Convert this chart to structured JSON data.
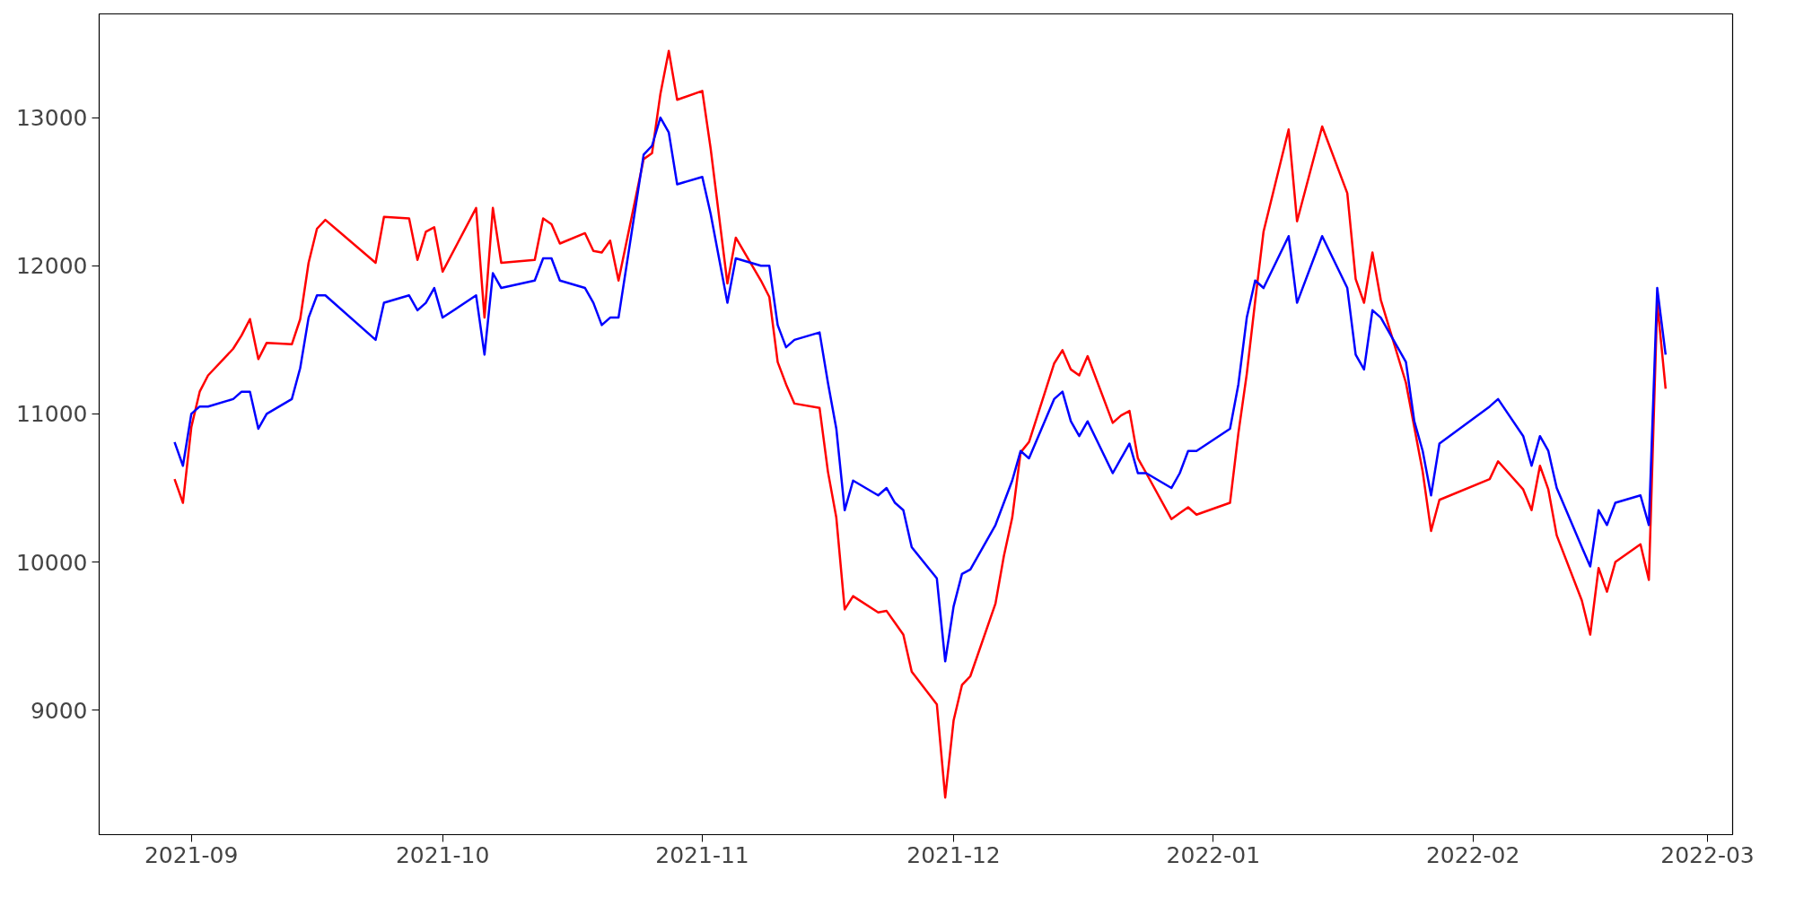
{
  "chart_data": {
    "type": "line",
    "x": [
      "2021-08-30",
      "2021-08-31",
      "2021-09-01",
      "2021-09-02",
      "2021-09-03",
      "2021-09-06",
      "2021-09-07",
      "2021-09-08",
      "2021-09-09",
      "2021-09-10",
      "2021-09-13",
      "2021-09-14",
      "2021-09-15",
      "2021-09-16",
      "2021-09-17",
      "2021-09-23",
      "2021-09-24",
      "2021-09-27",
      "2021-09-28",
      "2021-09-29",
      "2021-09-30",
      "2021-10-01",
      "2021-10-05",
      "2021-10-06",
      "2021-10-07",
      "2021-10-08",
      "2021-10-12",
      "2021-10-13",
      "2021-10-14",
      "2021-10-15",
      "2021-10-18",
      "2021-10-19",
      "2021-10-20",
      "2021-10-21",
      "2021-10-22",
      "2021-10-25",
      "2021-10-26",
      "2021-10-27",
      "2021-10-28",
      "2021-10-29",
      "2021-11-01",
      "2021-11-02",
      "2021-11-04",
      "2021-11-05",
      "2021-11-08",
      "2021-11-09",
      "2021-11-10",
      "2021-11-11",
      "2021-11-12",
      "2021-11-15",
      "2021-11-16",
      "2021-11-17",
      "2021-11-18",
      "2021-11-19",
      "2021-11-22",
      "2021-11-23",
      "2021-11-24",
      "2021-11-25",
      "2021-11-26",
      "2021-11-29",
      "2021-11-30",
      "2021-12-01",
      "2021-12-02",
      "2021-12-03",
      "2021-12-06",
      "2021-12-07",
      "2021-12-08",
      "2021-12-09",
      "2021-12-10",
      "2021-12-13",
      "2021-12-14",
      "2021-12-15",
      "2021-12-16",
      "2021-12-17",
      "2021-12-20",
      "2021-12-21",
      "2021-12-22",
      "2021-12-23",
      "2021-12-24",
      "2021-12-27",
      "2021-12-28",
      "2021-12-29",
      "2021-12-30",
      "2022-01-03",
      "2022-01-04",
      "2022-01-05",
      "2022-01-06",
      "2022-01-07",
      "2022-01-10",
      "2022-01-11",
      "2022-01-14",
      "2022-01-17",
      "2022-01-18",
      "2022-01-19",
      "2022-01-20",
      "2022-01-21",
      "2022-01-24",
      "2022-01-25",
      "2022-01-26",
      "2022-01-27",
      "2022-01-28",
      "2022-02-03",
      "2022-02-04",
      "2022-02-07",
      "2022-02-08",
      "2022-02-09",
      "2022-02-10",
      "2022-02-11",
      "2022-02-14",
      "2022-02-15",
      "2022-02-16",
      "2022-02-17",
      "2022-02-18",
      "2022-02-21",
      "2022-02-22",
      "2022-02-23",
      "2022-02-24"
    ],
    "series": [
      {
        "color": "#ff0000",
        "values": [
          10560,
          10400,
          10910,
          11150,
          11260,
          11440,
          11530,
          11640,
          11370,
          11480,
          11470,
          11640,
          12020,
          12250,
          12310,
          12020,
          12330,
          12320,
          12040,
          12230,
          12260,
          11960,
          12390,
          11650,
          12390,
          12020,
          12040,
          12320,
          12280,
          12150,
          12220,
          12100,
          12090,
          12170,
          11900,
          12720,
          12760,
          13160,
          13450,
          13120,
          13180,
          12790,
          11880,
          12190,
          11900,
          11790,
          11350,
          11200,
          11070,
          11040,
          10610,
          10300,
          9680,
          9770,
          9660,
          9670,
          9590,
          9510,
          9260,
          9040,
          8410,
          8930,
          9170,
          9230,
          9720,
          10040,
          10300,
          10740,
          10810,
          11340,
          11430,
          11300,
          11260,
          11390,
          10940,
          10990,
          11020,
          10700,
          10600,
          10290,
          10330,
          10370,
          10320,
          10400,
          10870,
          11270,
          11760,
          12230,
          12920,
          12300,
          12940,
          12490,
          11910,
          11750,
          12090,
          11770,
          11210,
          10910,
          10610,
          10210,
          10420,
          10560,
          10680,
          10490,
          10350,
          10650,
          10490,
          10180,
          9740,
          9510,
          9960,
          9800,
          10000,
          10120,
          9880,
          11750,
          11170
        ]
      },
      {
        "color": "#0000ff",
        "values": [
          10810,
          10650,
          11000,
          11050,
          11050,
          11100,
          11150,
          11150,
          10900,
          11000,
          11100,
          11310,
          11650,
          11800,
          11800,
          11500,
          11750,
          11800,
          11700,
          11750,
          11850,
          11650,
          11800,
          11400,
          11950,
          11850,
          11900,
          12050,
          12050,
          11900,
          11850,
          11750,
          11600,
          11650,
          11650,
          12750,
          12810,
          13000,
          12900,
          12550,
          12600,
          12350,
          11750,
          12050,
          12000,
          12000,
          11600,
          11450,
          11500,
          11550,
          11210,
          10900,
          10350,
          10550,
          10450,
          10500,
          10400,
          10350,
          10100,
          9890,
          9330,
          9700,
          9920,
          9950,
          10250,
          10400,
          10550,
          10750,
          10700,
          11100,
          11150,
          10950,
          10850,
          10950,
          10600,
          10700,
          10800,
          10600,
          10600,
          10500,
          10600,
          10750,
          10750,
          10900,
          11200,
          11650,
          11900,
          11850,
          12200,
          11750,
          12200,
          11850,
          11400,
          11300,
          11700,
          11650,
          11350,
          10950,
          10750,
          10450,
          10800,
          11050,
          11100,
          10850,
          10650,
          10850,
          10750,
          10500,
          10100,
          9970,
          10350,
          10250,
          10400,
          10450,
          10250,
          11850,
          11400
        ]
      }
    ],
    "xlim": [
      "2021-08-21",
      "2022-03-04"
    ],
    "ylim": [
      8160,
      13700
    ],
    "xticks": [
      {
        "value": "2021-09-01",
        "label": "2021-09"
      },
      {
        "value": "2021-10-01",
        "label": "2021-10"
      },
      {
        "value": "2021-11-01",
        "label": "2021-11"
      },
      {
        "value": "2021-12-01",
        "label": "2021-12"
      },
      {
        "value": "2022-01-01",
        "label": "2022-01"
      },
      {
        "value": "2022-02-01",
        "label": "2022-02"
      },
      {
        "value": "2022-03-01",
        "label": "2022-03"
      }
    ],
    "yticks": [
      9000,
      10000,
      11000,
      12000,
      13000
    ],
    "grid": false,
    "marker": "none",
    "line_style": "solid"
  }
}
